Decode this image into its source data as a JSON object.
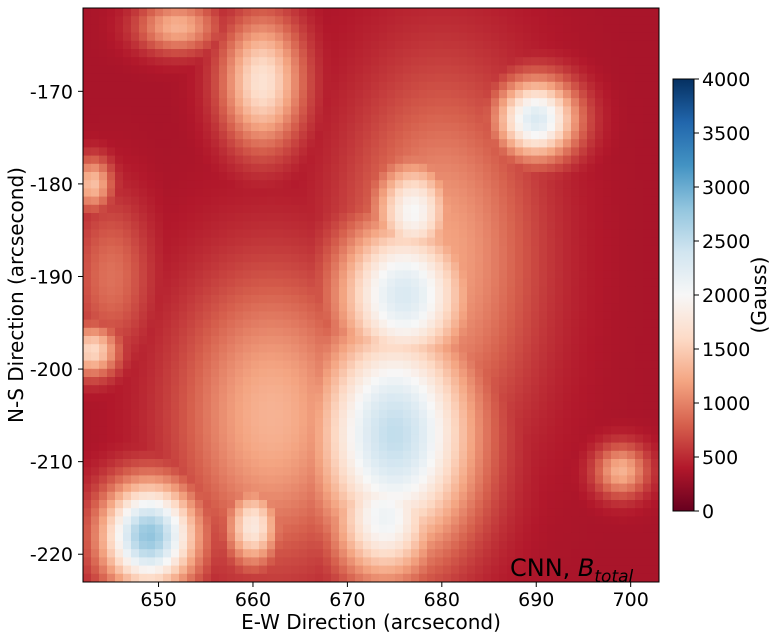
{
  "chart_data": {
    "type": "heatmap",
    "title": "",
    "xlabel": "E-W Direction (arcsecond)",
    "ylabel": "N-S Direction (arcsecond)",
    "xlim": [
      642,
      703
    ],
    "ylim": [
      -223,
      -161
    ],
    "x_ticks": [
      650,
      660,
      670,
      680,
      690,
      700
    ],
    "y_ticks": [
      -170,
      -180,
      -190,
      -200,
      -210,
      -220
    ],
    "colorbar": {
      "label": "(Gauss)",
      "colormap": "RdBu",
      "range": [
        0,
        4000
      ],
      "ticks": [
        0,
        500,
        1000,
        1500,
        2000,
        2500,
        3000,
        3500,
        4000
      ],
      "colors": [
        "#67001f",
        "#b2182b",
        "#d6604d",
        "#f4a582",
        "#fddbc7",
        "#f7f7f7",
        "#d1e5f0",
        "#92c5de",
        "#4393c3",
        "#2166ac",
        "#053061"
      ]
    },
    "annotation": {
      "text": "CNN, ",
      "symbol": "B",
      "subscript": "total"
    },
    "field_regions": [
      {
        "x": 675,
        "y": -207,
        "sigma_x": 6,
        "sigma_y": 9,
        "value": 2500
      },
      {
        "x": 676,
        "y": -192,
        "sigma_x": 5,
        "sigma_y": 6,
        "value": 2300
      },
      {
        "x": 677,
        "y": -183,
        "sigma_x": 3,
        "sigma_y": 4,
        "value": 2000
      },
      {
        "x": 674,
        "y": -216,
        "sigma_x": 4,
        "sigma_y": 5,
        "value": 2100
      },
      {
        "x": 649,
        "y": -218,
        "sigma_x": 3.5,
        "sigma_y": 4,
        "value": 2800
      },
      {
        "x": 690,
        "y": -173,
        "sigma_x": 3,
        "sigma_y": 3,
        "value": 2300
      },
      {
        "x": 661,
        "y": -169,
        "sigma_x": 3,
        "sigma_y": 5,
        "value": 1700
      },
      {
        "x": 662,
        "y": -205,
        "sigma_x": 7,
        "sigma_y": 11,
        "value": 1300
      },
      {
        "x": 680,
        "y": -188,
        "sigma_x": 7,
        "sigma_y": 14,
        "value": 1200
      },
      {
        "x": 660,
        "y": -217,
        "sigma_x": 2,
        "sigma_y": 3,
        "value": 1800
      },
      {
        "x": 643,
        "y": -198,
        "sigma_x": 2,
        "sigma_y": 2,
        "value": 1600
      },
      {
        "x": 643,
        "y": -180,
        "sigma_x": 1.5,
        "sigma_y": 2,
        "value": 1400
      },
      {
        "x": 699,
        "y": -211,
        "sigma_x": 2,
        "sigma_y": 2,
        "value": 1300
      },
      {
        "x": 652,
        "y": -163,
        "sigma_x": 3,
        "sigma_y": 2,
        "value": 1300
      },
      {
        "x": 645,
        "y": -190,
        "sigma_x": 3,
        "sigma_y": 6,
        "value": 900
      }
    ]
  }
}
